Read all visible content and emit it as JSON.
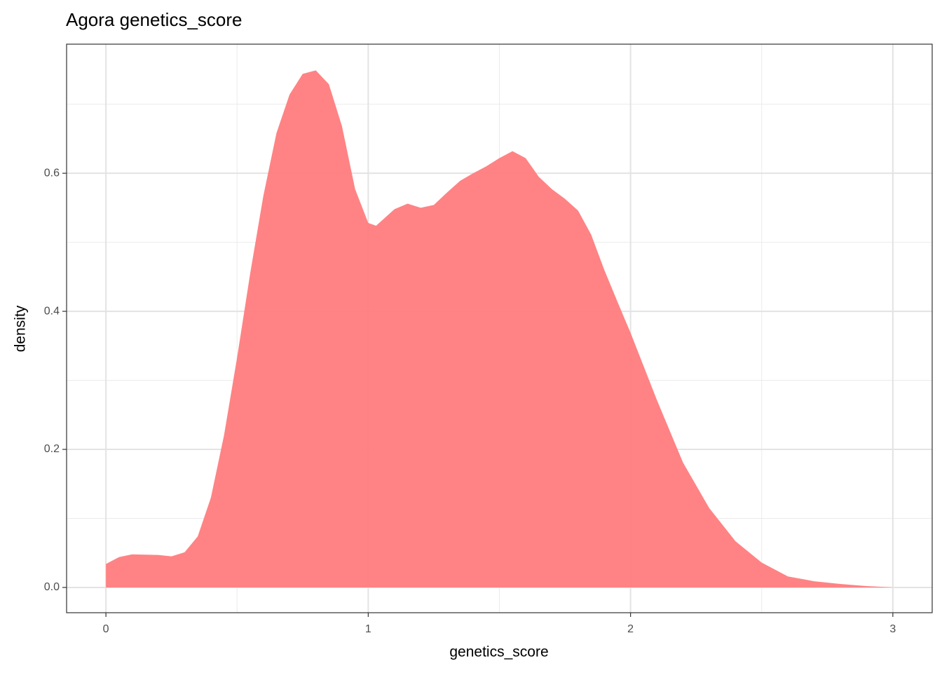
{
  "chart_data": {
    "type": "area",
    "title": "Agora genetics_score",
    "xlabel": "genetics_score",
    "ylabel": "density",
    "x": [
      0,
      0.05,
      0.1,
      0.2,
      0.25,
      0.3,
      0.35,
      0.4,
      0.45,
      0.5,
      0.55,
      0.6,
      0.65,
      0.7,
      0.75,
      0.8,
      0.85,
      0.9,
      0.95,
      1.0,
      1.03,
      1.1,
      1.15,
      1.2,
      1.25,
      1.3,
      1.35,
      1.4,
      1.45,
      1.5,
      1.55,
      1.6,
      1.65,
      1.7,
      1.75,
      1.8,
      1.85,
      1.9,
      1.95,
      2.0,
      2.1,
      2.2,
      2.3,
      2.4,
      2.5,
      2.6,
      2.7,
      2.8,
      2.9,
      3.0
    ],
    "y": [
      0.034,
      0.044,
      0.048,
      0.047,
      0.045,
      0.051,
      0.074,
      0.13,
      0.22,
      0.333,
      0.455,
      0.567,
      0.658,
      0.714,
      0.744,
      0.749,
      0.729,
      0.668,
      0.577,
      0.528,
      0.524,
      0.548,
      0.556,
      0.55,
      0.554,
      0.572,
      0.589,
      0.6,
      0.61,
      0.622,
      0.632,
      0.622,
      0.595,
      0.577,
      0.563,
      0.546,
      0.511,
      0.46,
      0.414,
      0.369,
      0.272,
      0.181,
      0.115,
      0.067,
      0.036,
      0.016,
      0.009,
      0.005,
      0.002,
      0.0
    ],
    "color": "#ff7f80",
    "xlim": [
      -0.15,
      3.15
    ],
    "ylim": [
      -0.0366,
      0.787
    ],
    "xticks": [
      0,
      1,
      2,
      3
    ],
    "yticks": [
      {
        "value": 0,
        "label": "0.0"
      },
      0.2,
      0.4,
      0.6
    ],
    "xminor": [
      0.5,
      1.5,
      2.5
    ],
    "yminor": [
      0.1,
      0.3,
      0.5,
      0.7
    ],
    "grid": true
  }
}
